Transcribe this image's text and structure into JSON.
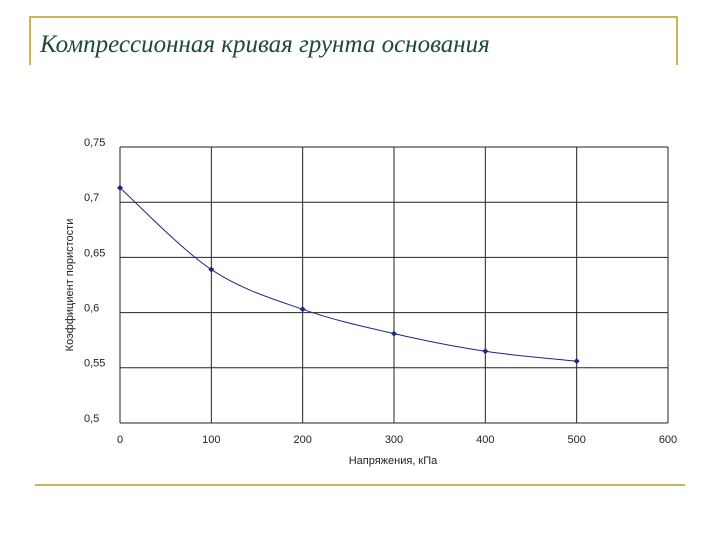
{
  "chart_data": {
    "type": "line",
    "title": "Компрессионная кривая грунта основания",
    "x_label": "Напряжения, кПа",
    "y_label": "Коэффициент пористости",
    "x": [
      0,
      100,
      200,
      300,
      400,
      500
    ],
    "series": [
      {
        "name": "Коэффициент пористости",
        "color": "#1a2a80",
        "values": [
          0.713,
          0.639,
          0.603,
          0.581,
          0.565,
          0.556
        ]
      }
    ],
    "xlim": [
      0,
      600
    ],
    "xticks": [
      0,
      100,
      200,
      300,
      400,
      500,
      600
    ],
    "ylim": [
      0.5,
      0.75
    ],
    "yticks": [
      {
        "value": 0.5,
        "label": "0,5"
      },
      {
        "value": 0.55,
        "label": "0,55"
      },
      {
        "value": 0.6,
        "label": "0,6"
      },
      {
        "value": 0.65,
        "label": "0,65"
      },
      {
        "value": 0.7,
        "label": "0,7"
      },
      {
        "value": 0.75,
        "label": "0,75"
      }
    ],
    "grid": true
  }
}
